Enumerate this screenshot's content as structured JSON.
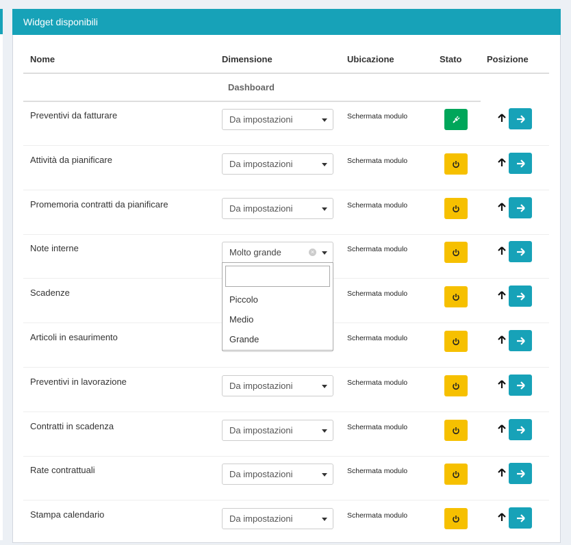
{
  "header": {
    "title": "Widget disponibili"
  },
  "table": {
    "columns": [
      "Nome",
      "Dimensione",
      "Ubicazione",
      "Stato",
      "Posizione"
    ],
    "group": "Dashboard",
    "rows": [
      {
        "name": "Preventivi da fatturare",
        "dimension": "Da impostazioni",
        "location": "Schermata modulo",
        "state_color": "#00a65a"
      },
      {
        "name": "Attività da pianificare",
        "dimension": "Da impostazioni",
        "location": "Schermata modulo",
        "state_color": "#f6c000"
      },
      {
        "name": "Promemoria contratti da pianificare",
        "dimension": "Da impostazioni",
        "location": "Schermata modulo",
        "state_color": "#f6c000"
      },
      {
        "name": "Note interne",
        "dimension": "Molto grande",
        "location": "Schermata modulo",
        "state_color": "#f6c000",
        "options": [
          "Piccolo",
          "Medio",
          "Grande"
        ]
      },
      {
        "name": "Scadenze",
        "location": "Schermata modulo",
        "state_color": "#f6c000"
      },
      {
        "name": "Articoli in esaurimento",
        "location": "Schermata modulo",
        "state_color": "#f6c000"
      },
      {
        "name": "Preventivi in lavorazione",
        "dimension": "Da impostazioni",
        "location": "Schermata modulo",
        "state_color": "#f6c000"
      },
      {
        "name": "Contratti in scadenza",
        "dimension": "Da impostazioni",
        "location": "Schermata modulo",
        "state_color": "#f6c000"
      },
      {
        "name": "Rate contrattuali",
        "dimension": "Da impostazioni",
        "location": "Schermata modulo",
        "state_color": "#f6c000"
      },
      {
        "name": "Stampa calendario",
        "dimension": "Da impostazioni",
        "location": "Schermata modulo",
        "state_color": "#f6c000"
      }
    ]
  }
}
